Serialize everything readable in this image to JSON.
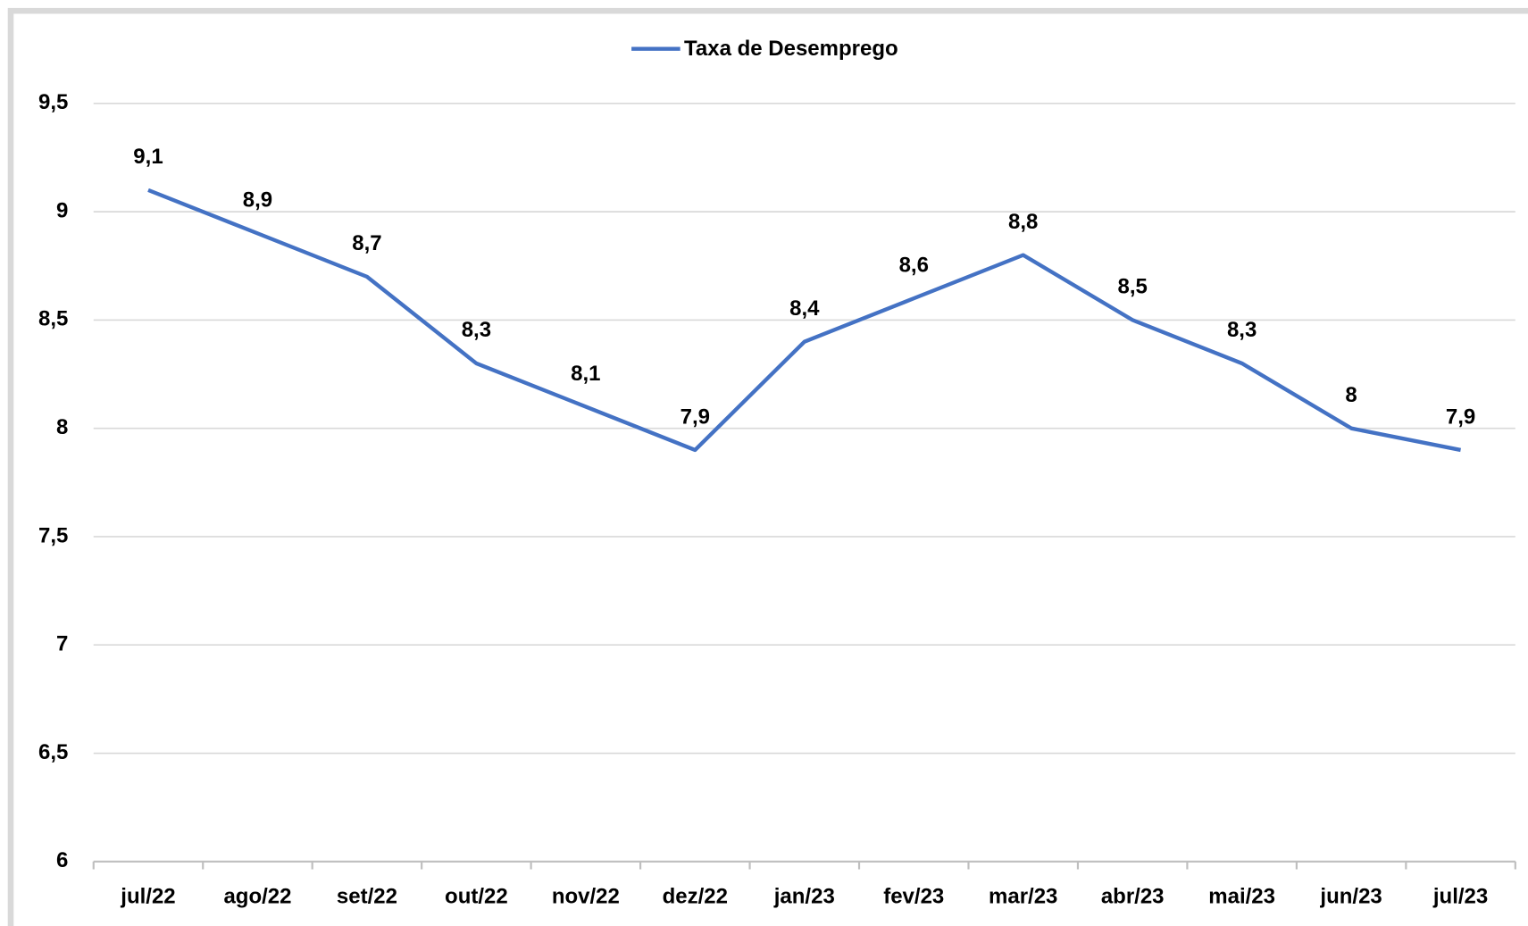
{
  "chart_data": {
    "type": "line",
    "categories": [
      "jul/22",
      "ago/22",
      "set/22",
      "out/22",
      "nov/22",
      "dez/22",
      "jan/23",
      "fev/23",
      "mar/23",
      "abr/23",
      "mai/23",
      "jun/23",
      "jul/23"
    ],
    "series": [
      {
        "name": "Taxa de Desemprego",
        "color": "#4472c4",
        "values": [
          9.1,
          8.9,
          8.7,
          8.3,
          8.1,
          7.9,
          8.4,
          8.6,
          8.8,
          8.5,
          8.3,
          8,
          7.9
        ],
        "value_labels": [
          "9,1",
          "8,9",
          "8,7",
          "8,3",
          "8,1",
          "7,9",
          "8,4",
          "8,6",
          "8,8",
          "8,5",
          "8,3",
          "8",
          "7,9"
        ]
      }
    ],
    "ylim": [
      6,
      9.5
    ],
    "yticks": [
      6,
      {
        "value": 6.5,
        "label": "6,5"
      },
      7,
      {
        "value": 7.5,
        "label": "7,5"
      },
      8,
      {
        "value": 8.5,
        "label": "8,5"
      },
      9,
      {
        "value": 9.5,
        "label": "9,5"
      }
    ],
    "grid": true,
    "legend": "top"
  }
}
